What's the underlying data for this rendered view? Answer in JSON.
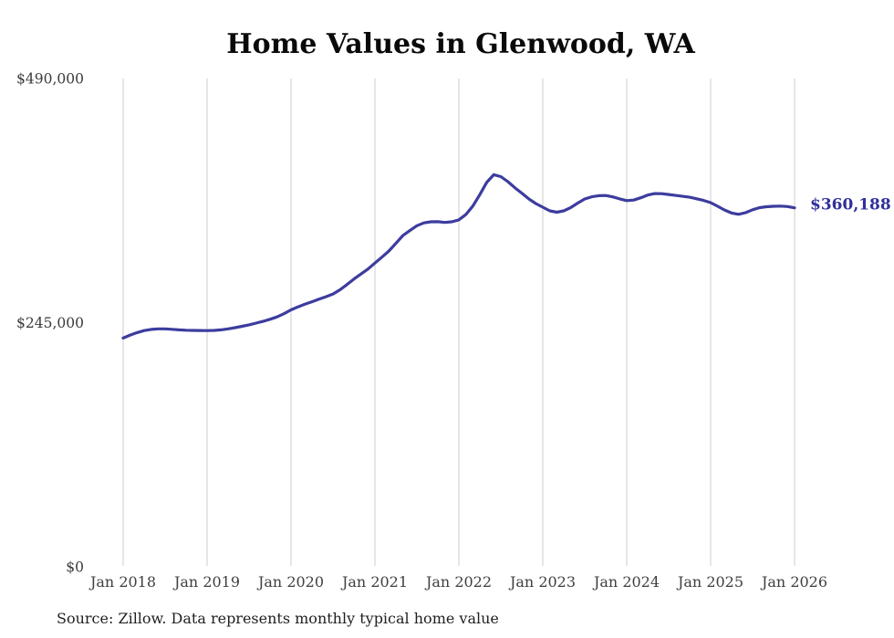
{
  "chart": {
    "title": "Home Values in Glenwood, WA",
    "source": "Source: Zillow. Data represents monthly typical home value",
    "end_label": "$360,188"
  },
  "chart_data": {
    "type": "line",
    "title": "Home Values in Glenwood, WA",
    "xlabel": "",
    "ylabel": "",
    "x_interval": "monthly",
    "x_start": "2018-01",
    "x_end": "2026-01",
    "x_ticks": [
      "Jan 2018",
      "Jan 2019",
      "Jan 2020",
      "Jan 2021",
      "Jan 2022",
      "Jan 2023",
      "Jan 2024",
      "Jan 2025",
      "Jan 2026"
    ],
    "y_ticks": [
      {
        "label": "$0",
        "value": 0
      },
      {
        "label": "$245,000",
        "value": 245000
      },
      {
        "label": "$490,000",
        "value": 490000
      }
    ],
    "ylim": [
      0,
      490000
    ],
    "grid": "vertical-only",
    "legend": "none",
    "end_label": "$360,188",
    "current_value": 360188,
    "source": "Source: Zillow. Data represents monthly typical home value",
    "colors": {
      "line": "#3c3c9f",
      "end_label": "#30309c",
      "gridline": "#cccccc",
      "x_tick_text": "#3f3f3f",
      "y_tick_text": "#3a3a3a",
      "title_text": "#0a0a0a",
      "source_text": "#1f1f1f"
    },
    "series": [
      {
        "name": "Typical home value",
        "values": [
          229500,
          232500,
          235000,
          237000,
          238200,
          238800,
          238800,
          238300,
          237800,
          237400,
          237200,
          237100,
          237000,
          237200,
          237800,
          238800,
          240000,
          241300,
          242800,
          244500,
          246300,
          248400,
          250800,
          254000,
          257800,
          260800,
          263500,
          266000,
          268500,
          271000,
          273800,
          278000,
          283200,
          288800,
          293800,
          298800,
          304800,
          310800,
          316900,
          324600,
          332500,
          337400,
          342300,
          345100,
          346200,
          346300,
          345600,
          346200,
          348100,
          353500,
          362000,
          373500,
          386000,
          393500,
          391500,
          386500,
          380500,
          375000,
          369200,
          364500,
          360900,
          357200,
          355800,
          357200,
          360500,
          365000,
          369100,
          371300,
          372400,
          372600,
          371200,
          369200,
          367500,
          368000,
          370300,
          373000,
          374500,
          374400,
          373600,
          372700,
          371800,
          370800,
          369300,
          367600,
          365400,
          361800,
          358000,
          355000,
          353700,
          355400,
          358300,
          360400,
          361300,
          361800,
          362000,
          361500,
          360188
        ]
      }
    ]
  }
}
